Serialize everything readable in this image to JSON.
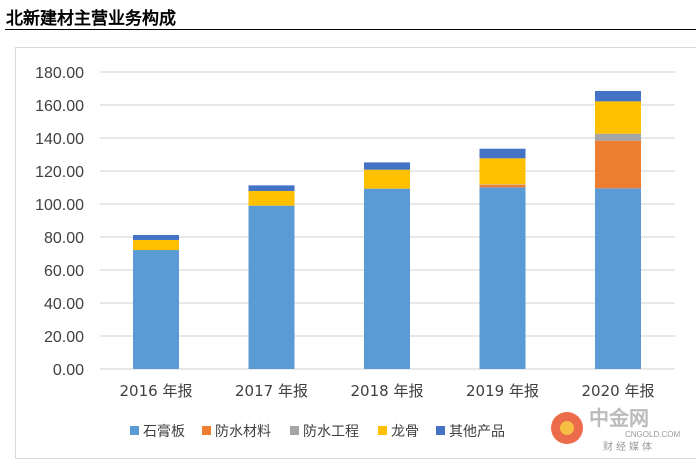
{
  "title": "北新建材主营业务构成",
  "chart_data": {
    "type": "bar",
    "stacked": true,
    "title": "北新建材主营业务构成",
    "categories": [
      "2016 年报",
      "2017 年报",
      "2018 年报",
      "2019 年报",
      "2020 年报"
    ],
    "series": [
      {
        "name": "石膏板",
        "color": "#5b9bd5",
        "values": [
          72.1,
          99.0,
          109.3,
          110.1,
          109.5
        ]
      },
      {
        "name": "防水材料",
        "color": "#ed7d31",
        "values": [
          0,
          0,
          0,
          1.5,
          28.9
        ]
      },
      {
        "name": "防水工程",
        "color": "#a5a5a5",
        "values": [
          0,
          0,
          0,
          0.3,
          4.2
        ]
      },
      {
        "name": "龙骨",
        "color": "#ffc000",
        "values": [
          6.1,
          8.9,
          11.5,
          15.8,
          19.6
        ]
      },
      {
        "name": "其他产品",
        "color": "#4472c4",
        "values": [
          3.0,
          3.4,
          4.4,
          5.8,
          6.3
        ]
      }
    ],
    "ylim": [
      0,
      180
    ],
    "yticks": [
      "0.00",
      "20.00",
      "40.00",
      "60.00",
      "80.00",
      "100.00",
      "120.00",
      "140.00",
      "160.00",
      "180.00"
    ],
    "grid": true,
    "legend": "bottom",
    "xlabel": "",
    "ylabel": ""
  },
  "watermark": {
    "name": "中金网",
    "url": "CNGOLD.COM",
    "tag": "财经媒体"
  }
}
